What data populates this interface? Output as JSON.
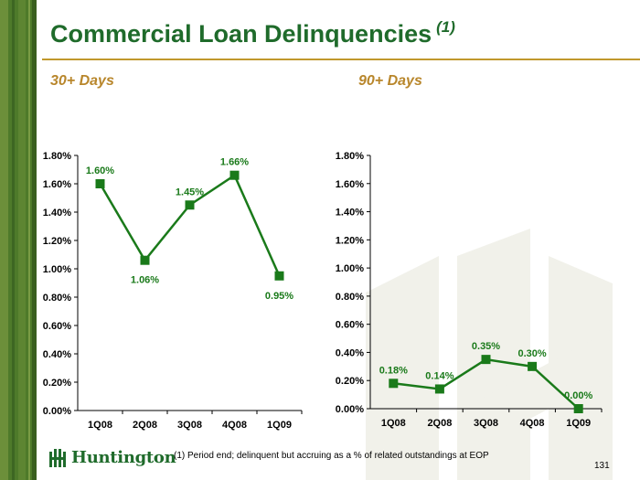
{
  "slide": {
    "title": "Commercial Loan Delinquencies",
    "title_note": "(1)",
    "footnote": "(1)  Period end; delinquent but accruing as a % of related outstandings at EOP",
    "page_number": "131",
    "logo_text": "Huntington"
  },
  "colors": {
    "brand_green": "#1f6b2b",
    "series_green": "#1a7a1a",
    "subhead_gold": "#b8862b"
  },
  "chart_data": [
    {
      "type": "line",
      "title": "30+ Days",
      "categories": [
        "1Q08",
        "2Q08",
        "3Q08",
        "4Q08",
        "1Q09"
      ],
      "values": [
        1.6,
        1.06,
        1.45,
        1.66,
        0.95
      ],
      "data_labels": [
        "1.60%",
        "1.06%",
        "1.45%",
        "1.66%",
        "0.95%"
      ],
      "ylim": [
        0,
        1.8
      ],
      "yticks": [
        "0.00%",
        "0.20%",
        "0.40%",
        "0.60%",
        "0.80%",
        "1.00%",
        "1.20%",
        "1.40%",
        "1.60%",
        "1.80%"
      ],
      "grid": false
    },
    {
      "type": "line",
      "title": "90+ Days",
      "categories": [
        "1Q08",
        "2Q08",
        "3Q08",
        "4Q08",
        "1Q09"
      ],
      "values": [
        0.18,
        0.14,
        0.35,
        0.3,
        0.0
      ],
      "data_labels": [
        "0.18%",
        "0.14%",
        "0.35%",
        "0.30%",
        "0.00%"
      ],
      "ylim": [
        0,
        1.8
      ],
      "yticks": [
        "0.00%",
        "0.20%",
        "0.40%",
        "0.60%",
        "0.80%",
        "1.00%",
        "1.20%",
        "1.40%",
        "1.60%",
        "1.80%"
      ],
      "grid": false
    }
  ]
}
